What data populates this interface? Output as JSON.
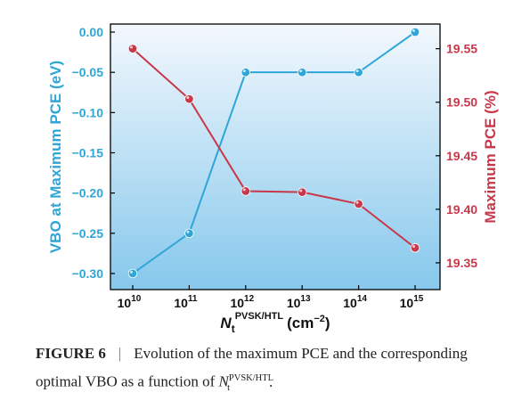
{
  "chart_data": {
    "type": "line",
    "x": [
      "10",
      "11",
      "12",
      "13",
      "14",
      "15"
    ],
    "x_tick_base": "10",
    "xlabel": {
      "base": "N",
      "sub": "t",
      "sup": "PVSK/HTL",
      "unit_open": "(cm",
      "unit_exp": "−2",
      "unit_close": ")"
    },
    "grid": false,
    "background": "light blue vertical gradient",
    "series": [
      {
        "axis": "left",
        "color": "#2ea6d8",
        "values": [
          -0.3,
          -0.25,
          -0.05,
          -0.05,
          -0.05,
          0.0
        ]
      },
      {
        "axis": "right",
        "color": "#c8384a",
        "values": [
          19.55,
          19.503,
          19.417,
          19.416,
          19.405,
          19.364
        ]
      }
    ],
    "y_left": {
      "label": "VBO at Maximum PCE (eV)",
      "ylim": [
        -0.32,
        0.01
      ],
      "ticks": [
        0.0,
        -0.05,
        -0.1,
        -0.15,
        -0.2,
        -0.25,
        -0.3
      ],
      "tick_labels": [
        "0.00",
        "−0.05",
        "−0.10",
        "−0.15",
        "−0.20",
        "−0.25",
        "−0.30"
      ],
      "color": "#2ea6d8"
    },
    "y_right": {
      "label": "Maximum PCE (%)",
      "ylim": [
        19.325,
        19.573
      ],
      "ticks": [
        19.55,
        19.5,
        19.45,
        19.4,
        19.35
      ],
      "tick_labels": [
        "19.55",
        "19.50",
        "19.45",
        "19.40",
        "19.35"
      ],
      "color": "#c8384a"
    }
  },
  "caption": {
    "label": "FIGURE 6",
    "separator": "|",
    "text": "Evolution of the maximum PCE and the corresponding optimal VBO as a function of ",
    "var": "N",
    "var_sub": "t",
    "var_sup": "PVSK/HTL",
    "end": "."
  }
}
